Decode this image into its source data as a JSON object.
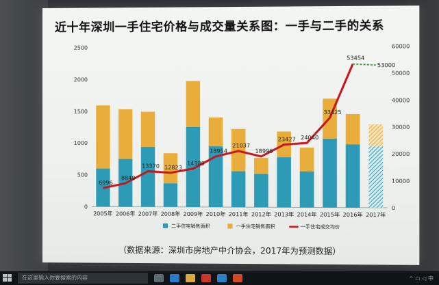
{
  "title": "近十年深圳一手住宅价格与成交量关系图：一手与二手的关系",
  "source_note": "（数据来源：深圳市房地产中介协会，2017年为预测数据）",
  "taskbar": {
    "search_placeholder": "在这里输入你要搜索的内容"
  },
  "colors": {
    "second_hand": "#2e9bb6",
    "first_hand": "#e8ad3a",
    "price_line": "#c4161c"
  },
  "chart_data": {
    "type": "bar",
    "categories": [
      "2005年",
      "2006年",
      "2007年",
      "2008年",
      "2009年",
      "2010年",
      "2011年",
      "2012年",
      "2013年",
      "2014年",
      "2015年",
      "2016年",
      "2017年"
    ],
    "left_axis": {
      "ticks": [
        "0",
        "500",
        "1000",
        "1500",
        "2000",
        "2500"
      ],
      "ylim": [
        0,
        2500
      ]
    },
    "right_axis": {
      "ticks": [
        "0",
        "10000",
        "20000",
        "30000",
        "40000",
        "50000",
        "60000"
      ],
      "ylim": [
        0,
        60000
      ]
    },
    "series": [
      {
        "name": "二手住宅销售面积",
        "type": "bar",
        "values": [
          600,
          750,
          940,
          370,
          1250,
          950,
          560,
          520,
          780,
          560,
          1070,
          980,
          950
        ]
      },
      {
        "name": "一手住宅销售面积",
        "type": "bar",
        "values": [
          990,
          780,
          550,
          470,
          720,
          450,
          660,
          250,
          400,
          370,
          620,
          470,
          340
        ]
      },
      {
        "name": "一手住宅成交均价",
        "type": "line",
        "axis": "right",
        "values": [
          6996,
          8848,
          13370,
          12823,
          14389,
          18954,
          21037,
          18996,
          23427,
          24040,
          33425,
          53454,
          null
        ],
        "labels": [
          "6996",
          "8848",
          "13370",
          "12823",
          "14389",
          "18954",
          "21037",
          "18996",
          "23427",
          "24040",
          "33425",
          "53454",
          ""
        ]
      },
      {
        "name": "",
        "type": "line-dashed",
        "axis": "right",
        "values": [
          null,
          null,
          null,
          null,
          null,
          null,
          null,
          null,
          null,
          null,
          null,
          53454,
          53000
        ],
        "labels": [
          "",
          "",
          "",
          "",
          "",
          "",
          "",
          "",
          "",
          "",
          "",
          "",
          "53000"
        ]
      }
    ],
    "hatched_category": "2017年",
    "legend_position": "bottom"
  }
}
